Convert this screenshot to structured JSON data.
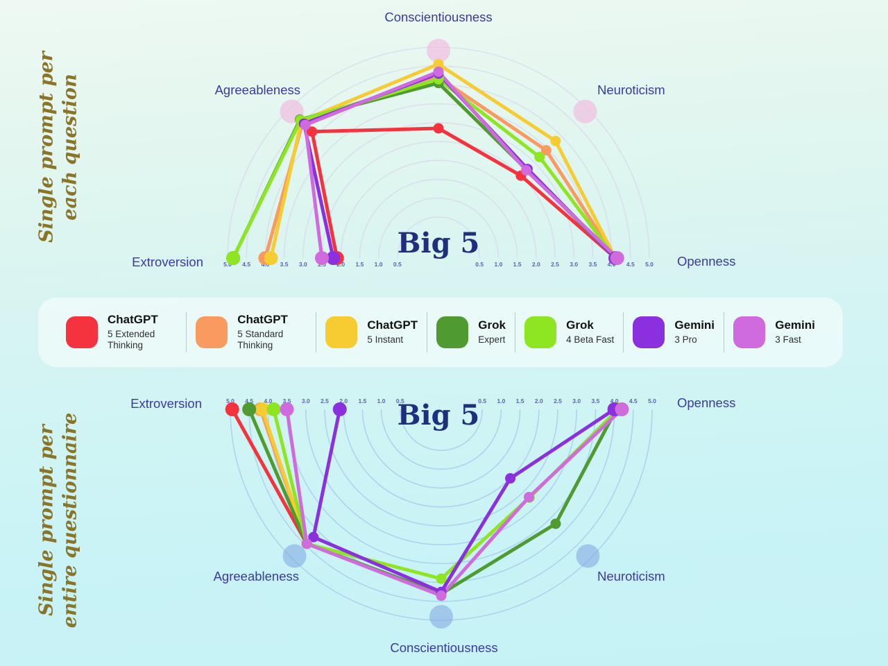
{
  "page": {
    "axis_label_color": "#3a3aa2",
    "tick_label_color": "#414aa6",
    "title_color": "#1e2f7e",
    "side_label_color": "#8a7428"
  },
  "legend": {
    "items": [
      {
        "key": "chatgpt-5-extended",
        "brand": "ChatGPT",
        "variant": "5 Extended Thinking",
        "color": "#f5333e"
      },
      {
        "key": "chatgpt-5-standard",
        "brand": "ChatGPT",
        "variant": "5 Standard Thinking",
        "color": "#f99b61"
      },
      {
        "key": "chatgpt-5-instant",
        "brand": "ChatGPT",
        "variant": "5 Instant",
        "color": "#f7cb32"
      },
      {
        "key": "grok-expert",
        "brand": "Grok",
        "variant": "Expert",
        "color": "#4f9b31"
      },
      {
        "key": "grok-4-beta-fast",
        "brand": "Grok",
        "variant": "4 Beta Fast",
        "color": "#8ee522"
      },
      {
        "key": "gemini-3-pro",
        "brand": "Gemini",
        "variant": "3 Pro",
        "color": "#8b30df"
      },
      {
        "key": "gemini-3-fast",
        "brand": "Gemini",
        "variant": "3 Fast",
        "color": "#cf6bdd"
      }
    ]
  },
  "chart_data": [
    {
      "type": "radar-semicircle",
      "orientation": "arc-up",
      "side_label_lines": [
        "Single prompt per",
        "each question"
      ],
      "title": "Big 5",
      "axes": [
        "Extroversion",
        "Agreeableness",
        "Conscientiousness",
        "Neuroticism",
        "Openness"
      ],
      "scale": {
        "min": 0.5,
        "max": 5.0,
        "step": 0.5
      },
      "ring_color": "#d7cdea",
      "endpoint_marker_color": "#f0bfe1",
      "series": [
        {
          "name": "ChatGPT 5 Extended Thinking",
          "color": "#f5333e",
          "values": [
            2.1,
            4.15,
            2.85,
            2.5,
            4.1
          ]
        },
        {
          "name": "ChatGPT 5 Standard Thinking",
          "color": "#f99b61",
          "values": [
            4.0,
            4.5,
            4.2,
            3.45,
            4.1
          ]
        },
        {
          "name": "ChatGPT 5 Instant",
          "color": "#f7cb32",
          "values": [
            3.85,
            4.55,
            4.55,
            3.8,
            4.1
          ]
        },
        {
          "name": "Grok Expert",
          "color": "#4f9b31",
          "values": [
            4.85,
            4.6,
            4.05,
            2.72,
            4.1
          ]
        },
        {
          "name": "Grok 4 Beta Fast",
          "color": "#8ee522",
          "values": [
            4.85,
            4.58,
            4.15,
            3.2,
            4.1
          ]
        },
        {
          "name": "Gemini 3 Pro",
          "color": "#8b30df",
          "values": [
            2.2,
            4.45,
            4.3,
            2.75,
            4.1
          ]
        },
        {
          "name": "Gemini 3 Fast",
          "color": "#cf6bdd",
          "values": [
            2.5,
            4.4,
            4.35,
            2.7,
            4.15
          ]
        }
      ]
    },
    {
      "type": "radar-semicircle",
      "orientation": "arc-down",
      "side_label_lines": [
        "Single prompt per",
        "entire questionnaire"
      ],
      "title": "Big 5",
      "axes": [
        "Extroversion",
        "Agreeableness",
        "Conscientiousness",
        "Neuroticism",
        "Openness"
      ],
      "scale": {
        "min": 0.5,
        "max": 5.0,
        "step": 0.5
      },
      "ring_color": "#8fb5e8",
      "endpoint_marker_color": "#7da4e0",
      "series": [
        {
          "name": "ChatGPT 5 Extended Thinking",
          "color": "#f5333e",
          "values": [
            4.95,
            4.45,
            null,
            null,
            null
          ]
        },
        {
          "name": "ChatGPT 5 Standard Thinking",
          "color": "#f99b61",
          "values": [
            4.2,
            4.45,
            null,
            null,
            null
          ]
        },
        {
          "name": "ChatGPT 5 Instant",
          "color": "#f7cb32",
          "values": [
            4.15,
            4.45,
            null,
            null,
            null
          ]
        },
        {
          "name": "Grok Expert",
          "color": "#4f9b31",
          "values": [
            4.5,
            4.45,
            4.3,
            3.7,
            4.05
          ]
        },
        {
          "name": "Grok 4 Beta Fast",
          "color": "#8ee522",
          "values": [
            3.85,
            4.45,
            3.9,
            2.72,
            4.1
          ]
        },
        {
          "name": "Gemini 3 Pro",
          "color": "#8b30df",
          "values": [
            2.1,
            4.2,
            4.25,
            2.0,
            4.0
          ]
        },
        {
          "name": "Gemini 3 Fast",
          "color": "#cf6bdd",
          "values": [
            3.5,
            4.45,
            4.35,
            2.7,
            4.2
          ]
        }
      ]
    }
  ]
}
